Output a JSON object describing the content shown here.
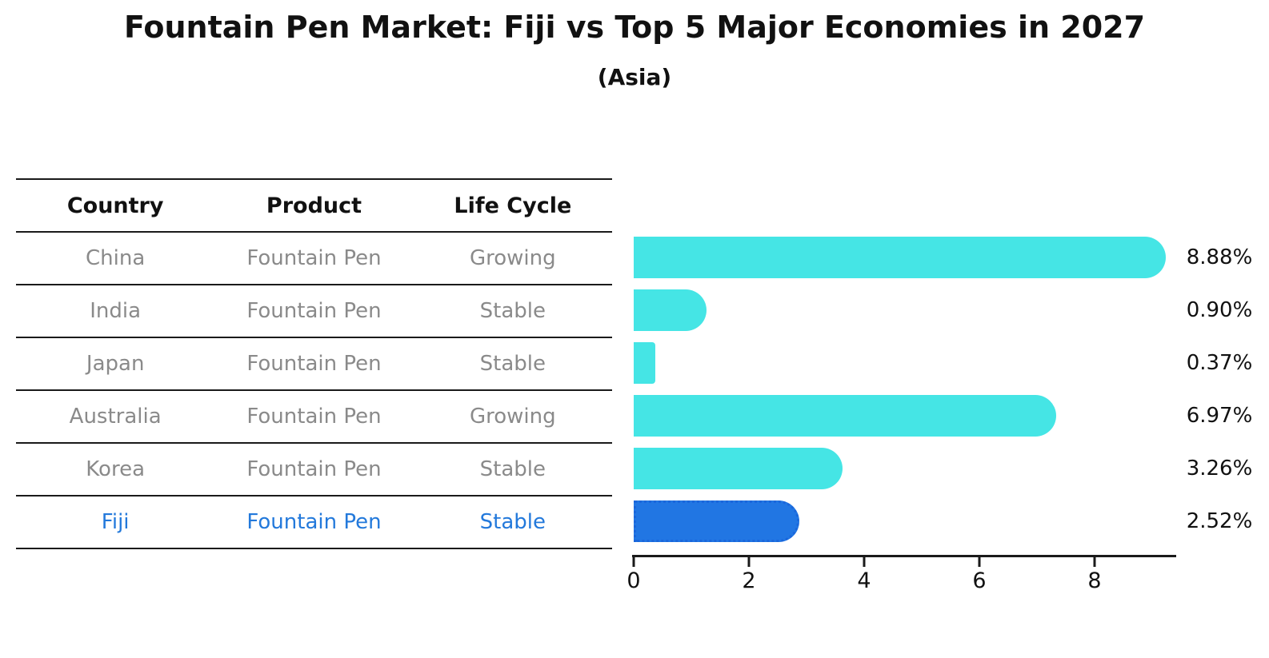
{
  "table": {
    "columns": [
      "Country",
      "Product",
      "Life Cycle"
    ],
    "rows": [
      {
        "country": "China",
        "product": "Fountain Pen",
        "life_cycle": "Growing",
        "highlight": false
      },
      {
        "country": "India",
        "product": "Fountain Pen",
        "life_cycle": "Stable",
        "highlight": false
      },
      {
        "country": "Japan",
        "product": "Fountain Pen",
        "life_cycle": "Stable",
        "highlight": false
      },
      {
        "country": "Australia",
        "product": "Fountain Pen",
        "life_cycle": "Growing",
        "highlight": false
      },
      {
        "country": "Korea",
        "product": "Fountain Pen",
        "life_cycle": "Stable",
        "highlight": false
      },
      {
        "country": "Fiji",
        "product": "Fountain Pen",
        "life_cycle": "Stable",
        "highlight": true
      }
    ]
  },
  "chart_data": {
    "type": "bar",
    "orientation": "horizontal",
    "title": "Fountain Pen Market: Fiji vs Top 5 Major Economies in 2027",
    "subtitle": "(Asia)",
    "categories": [
      "China",
      "India",
      "Japan",
      "Australia",
      "Korea",
      "Fiji"
    ],
    "values": [
      8.88,
      0.9,
      0.37,
      6.97,
      3.26,
      2.52
    ],
    "value_labels": [
      "8.88%",
      "0.90%",
      "0.37%",
      "6.97%",
      "3.26%",
      "2.52%"
    ],
    "unit": "percent",
    "highlight_category": "Fiji",
    "x_ticks": [
      0,
      2,
      4,
      6,
      8
    ],
    "xlim": [
      0,
      9.4
    ],
    "grid": false,
    "legend": false,
    "colors": {
      "bar_default": "#45E5E5",
      "bar_highlight": "#2176E3",
      "bar_highlight_border": "#1A66DB",
      "highlight_text": "#2379DB",
      "muted_text": "#8A8A8A",
      "value_label_text": "#111111",
      "line": "#1A1A1A"
    }
  }
}
